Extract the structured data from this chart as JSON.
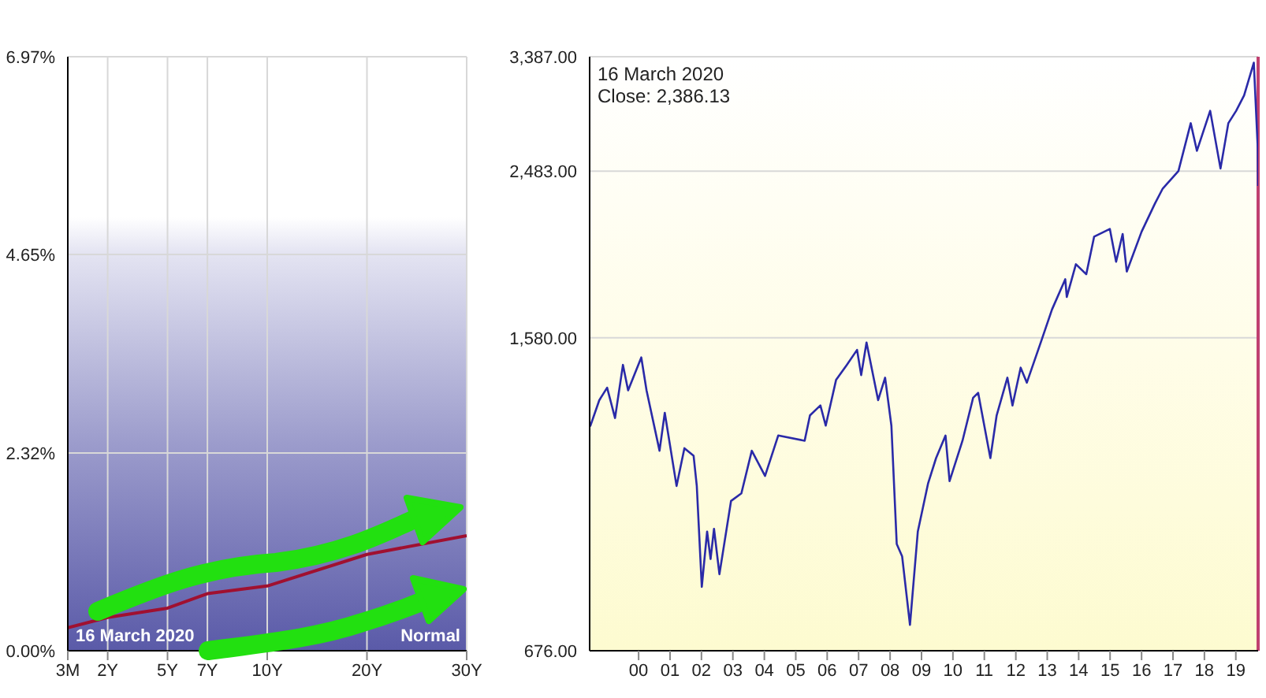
{
  "chart_data": [
    {
      "type": "line",
      "categories": [
        "3M",
        null,
        "2Y",
        null,
        null,
        "5Y",
        null,
        "7Y",
        null,
        null,
        "10Y",
        null,
        null,
        null,
        null,
        "20Y",
        null,
        null,
        null,
        null,
        "30Y"
      ],
      "series": [
        {
          "color": "#a01030",
          "x": [
            "3M",
            "2Y",
            "5Y",
            "7Y",
            "10Y",
            "20Y",
            "30Y"
          ],
          "values": [
            0.27,
            0.39,
            0.5,
            0.67,
            0.76,
            1.13,
            1.35
          ]
        }
      ],
      "ylim": [
        0,
        6.97
      ],
      "yticks": [
        {
          "value": 0,
          "label": "0.00%"
        },
        {
          "value": 2.32,
          "label": "2.32%"
        },
        {
          "value": 4.65,
          "label": "4.65%"
        },
        {
          "value": 6.97,
          "label": "6.97%"
        }
      ],
      "grid": true,
      "annotations": [
        "16  March 2020",
        "Normal"
      ]
    },
    {
      "type": "line",
      "series": [
        {
          "color": "#2a2aa8",
          "x": [
            "1998-12-16",
            "1999-04-01",
            "1999-07-01",
            "1999-10-01",
            "2000-01-01",
            "2000-03-01",
            "2000-08-01",
            "2000-10-01",
            "2001-03-01",
            "2001-05-01",
            "2001-09-15",
            "2001-12-15",
            "2002-04-01",
            "2002-05-08",
            "2002-07-05",
            "2002-09-05",
            "2002-10-15",
            "2002-11-24",
            "2003-01-26",
            "2003-06-10",
            "2003-10-08",
            "2004-02-06",
            "2004-07-09",
            "2004-12-09",
            "2005-10-12",
            "2005-12-13",
            "2006-04-13",
            "2006-06-14",
            "2006-10-12",
            "2007-02-14",
            "2007-06-13",
            "2007-07-31",
            "2007-10-01",
            "2008-02-13",
            "2008-05-04",
            "2008-07-16",
            "2008-09-16",
            "2008-11-18",
            "2009-02-17",
            "2009-05-19",
            "2009-09-16",
            "2009-12-17",
            "2010-04-06",
            "2010-05-23",
            "2010-10-20",
            "2011-02-21",
            "2011-04-20",
            "2011-09-09",
            "2011-11-21",
            "2012-03-25",
            "2012-05-23",
            "2012-08-26",
            "2012-11-06",
            "2013-04-27",
            "2013-08-25",
            "2014-01-26",
            "2014-02-13",
            "2014-05-30",
            "2014-09-27",
            "2014-12-28",
            "2015-06-28",
            "2015-09-09",
            "2015-11-24",
            "2016-01-11",
            "2016-07-01",
            "2016-12-02",
            "2017-03-04",
            "2017-09-02",
            "2018-01-23",
            "2018-04-05",
            "2018-09-06",
            "2019-01-04",
            "2019-04-05",
            "2019-07-05",
            "2019-10-05",
            "2020-01-26",
            "2020-03-12",
            "2020-03-16"
          ],
          "values": [
            1242,
            1334,
            1380,
            1271,
            1468,
            1370,
            1498,
            1370,
            1163,
            1289,
            1057,
            1171,
            1147,
            1057,
            804,
            934,
            867,
            941,
            832,
            1015,
            1036,
            1163,
            1086,
            1212,
            1195,
            1280,
            1315,
            1245,
            1409,
            1468,
            1529,
            1428,
            1560,
            1334,
            1418,
            1245,
            903,
            873,
            725,
            934,
            1065,
            1140,
            1212,
            1071,
            1195,
            1343,
            1361,
            1140,
            1280,
            1418,
            1315,
            1457,
            1399,
            1571,
            1706,
            1852,
            1765,
            1929,
            1877,
            2079,
            2123,
            1942,
            2094,
            1891,
            2107,
            2273,
            2369,
            2484,
            2828,
            2624,
            2925,
            2501,
            2828,
            2925,
            3049,
            3333,
            2641,
            2386
          ]
        }
      ],
      "log": true,
      "xlim": [
        "1998-12-10",
        "2020-03-16"
      ],
      "xticks": [
        {
          "value": "2000-07-01",
          "label": "00"
        },
        {
          "value": "2001-07-01",
          "label": "01"
        },
        {
          "value": "2002-07-01",
          "label": "02"
        },
        {
          "value": "2003-07-01",
          "label": "03"
        },
        {
          "value": "2004-07-01",
          "label": "04"
        },
        {
          "value": "2005-07-01",
          "label": "05"
        },
        {
          "value": "2006-07-01",
          "label": "06"
        },
        {
          "value": "2007-07-01",
          "label": "07"
        },
        {
          "value": "2008-07-01",
          "label": "08"
        },
        {
          "value": "2009-07-01",
          "label": "09"
        },
        {
          "value": "2010-07-01",
          "label": "10"
        },
        {
          "value": "2011-07-01",
          "label": "11"
        },
        {
          "value": "2012-07-01",
          "label": "12"
        },
        {
          "value": "2013-07-01",
          "label": "13"
        },
        {
          "value": "2014-07-01",
          "label": "14"
        },
        {
          "value": "2015-07-01",
          "label": "15"
        },
        {
          "value": "2016-07-01",
          "label": "16"
        },
        {
          "value": "2017-07-01",
          "label": "17"
        },
        {
          "value": "2018-07-01",
          "label": "18"
        },
        {
          "value": "2019-07-01",
          "label": "19"
        }
      ],
      "ylim": [
        676,
        3387
      ],
      "yticks": [
        {
          "value": 676,
          "label": "676.00"
        },
        {
          "value": 1580,
          "label": "1,580.00"
        },
        {
          "value": 2483,
          "label": "2,483.00"
        },
        {
          "value": 3387,
          "label": "3,387.00"
        }
      ],
      "grid": "y",
      "ref_lines": [
        {
          "axis": "x",
          "value": "2020-03-16",
          "color": "#c04070"
        }
      ],
      "annotations": [
        "16  March 2020",
        "Close: 2,386.13"
      ]
    }
  ]
}
